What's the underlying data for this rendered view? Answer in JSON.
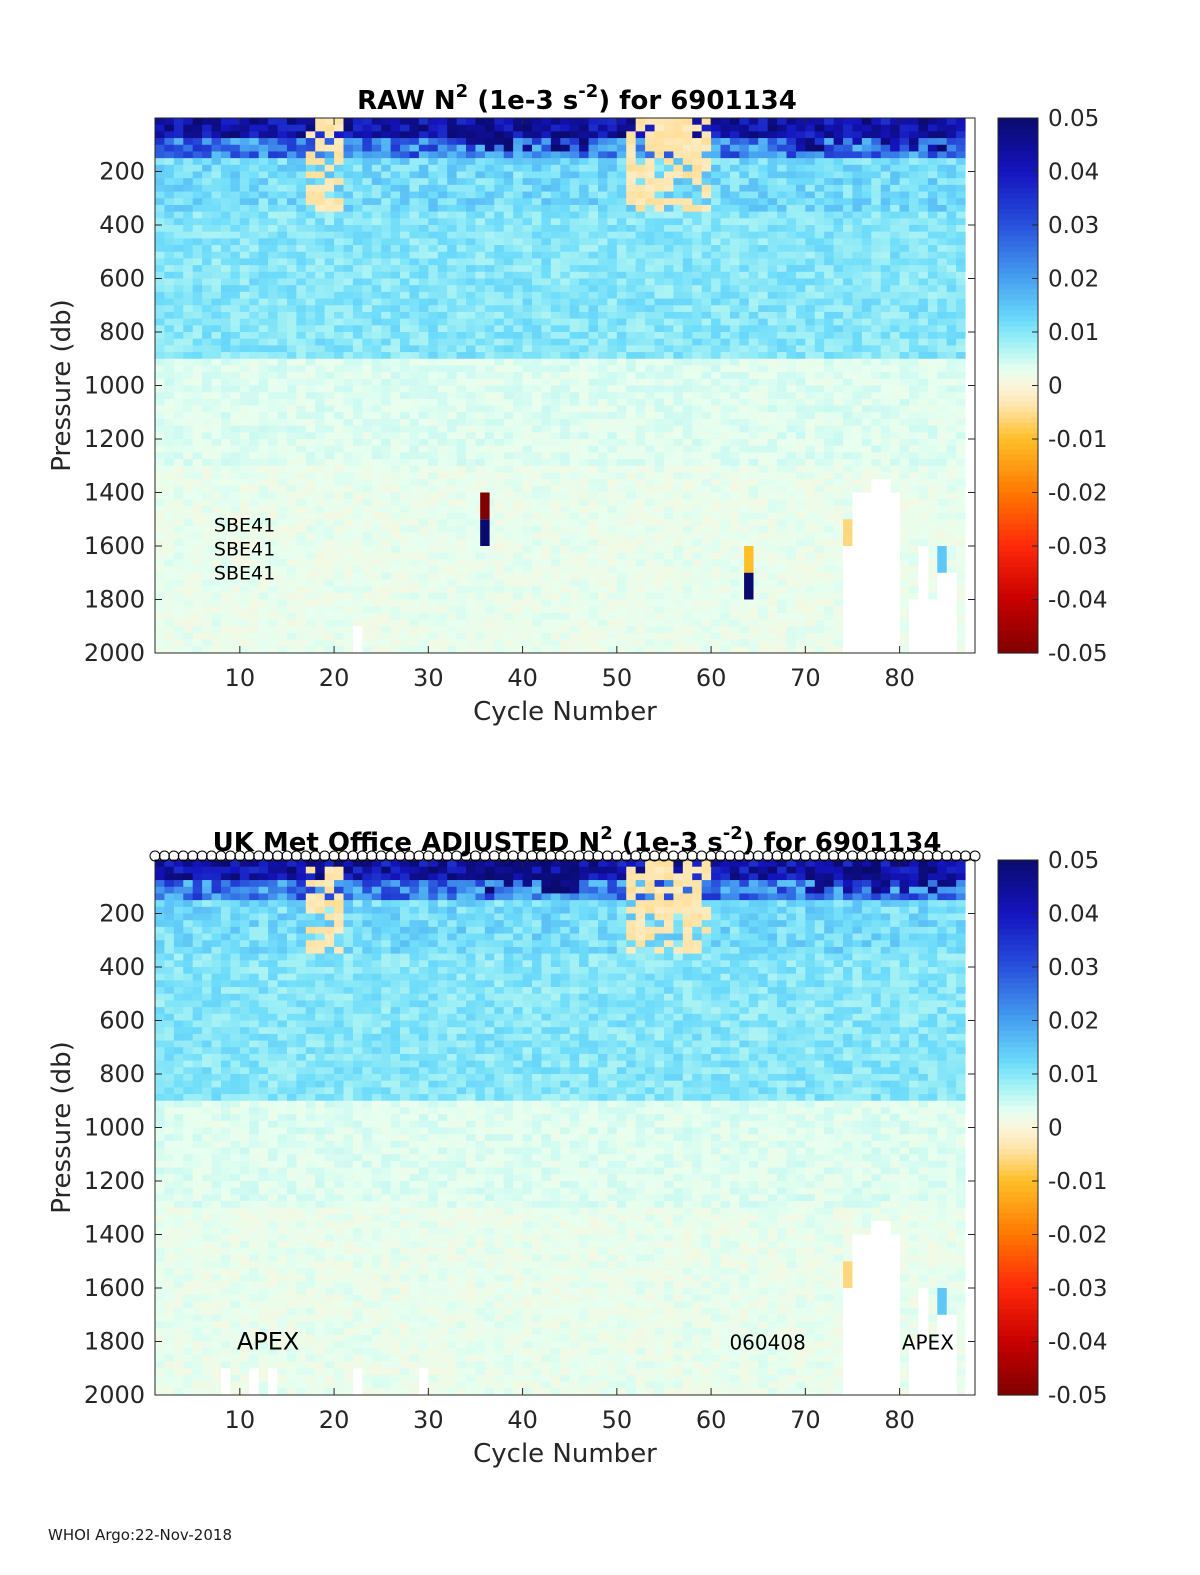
{
  "footer": "WHOI Argo:22-Nov-2018",
  "chart_data": [
    {
      "type": "heatmap",
      "title": "RAW N",
      "title_sup": "2",
      "title_mid": " (1e-3 s",
      "title_sup2": "-2",
      "title_end": ") for 6901134",
      "xlabel": "Cycle Number",
      "ylabel": "Pressure (db)",
      "xlim": [
        1,
        88
      ],
      "ylim": [
        0,
        2000
      ],
      "y_reversed": true,
      "xticks": [
        10,
        20,
        30,
        40,
        50,
        60,
        70,
        80
      ],
      "yticks": [
        200,
        400,
        600,
        800,
        1000,
        1200,
        1400,
        1600,
        1800,
        2000
      ],
      "clim": [
        -0.05,
        0.05
      ],
      "colorbar_ticks": [
        "0.05",
        "0.04",
        "0.03",
        "0.02",
        "0.01",
        "0",
        "-0.01",
        "-0.02",
        "-0.03",
        "-0.04",
        "-0.05"
      ],
      "colormap": "jet-like (dark red -> orange -> cream at 0 -> cyan -> dark blue)",
      "annotations": [
        {
          "text": "SBE41",
          "x": 10.5,
          "y": 1515
        },
        {
          "text": "SBE41",
          "x": 10.5,
          "y": 1605
        },
        {
          "text": "SBE41",
          "x": 10.5,
          "y": 1695
        }
      ],
      "description_of_field": {
        "surface_0_100db": 0.04,
        "upper_100_300db": 0.012,
        "mid_400_900db": 0.008,
        "deep_1000_2000db": 0.002
      },
      "outliers": [
        {
          "cycle": 36,
          "p_range": [
            1400,
            1500
          ],
          "value": -0.05
        },
        {
          "cycle": 36,
          "p_range": [
            1500,
            1600
          ],
          "value": 0.05
        },
        {
          "cycle": 64,
          "p_range": [
            1600,
            1700
          ],
          "value": -0.01
        },
        {
          "cycle": 64,
          "p_range": [
            1700,
            1800
          ],
          "value": 0.05
        }
      ]
    },
    {
      "type": "heatmap",
      "title": "UK Met Office  ADJUSTED N",
      "title_sup": "2",
      "title_mid": " (1e-3 s",
      "title_sup2": "-2",
      "title_end": ") for 6901134",
      "xlabel": "Cycle Number",
      "ylabel": "Pressure (db)",
      "xlim": [
        1,
        88
      ],
      "ylim": [
        0,
        2000
      ],
      "y_reversed": true,
      "xticks": [
        10,
        20,
        30,
        40,
        50,
        60,
        70,
        80
      ],
      "yticks": [
        200,
        400,
        600,
        800,
        1000,
        1200,
        1400,
        1600,
        1800,
        2000
      ],
      "clim": [
        -0.05,
        0.05
      ],
      "colorbar_ticks": [
        "0.05",
        "0.04",
        "0.03",
        "0.02",
        "0.01",
        "0",
        "-0.01",
        "-0.02",
        "-0.03",
        "-0.04",
        "-0.05"
      ],
      "annotations": [
        {
          "text": "APEX",
          "x": 13,
          "y": 1800
        },
        {
          "text": "060408",
          "x": 66,
          "y": 1800
        },
        {
          "text": "APEX",
          "x": 83,
          "y": 1800
        }
      ],
      "top_markers": "open circles at every cycle along pressure 0"
    }
  ]
}
